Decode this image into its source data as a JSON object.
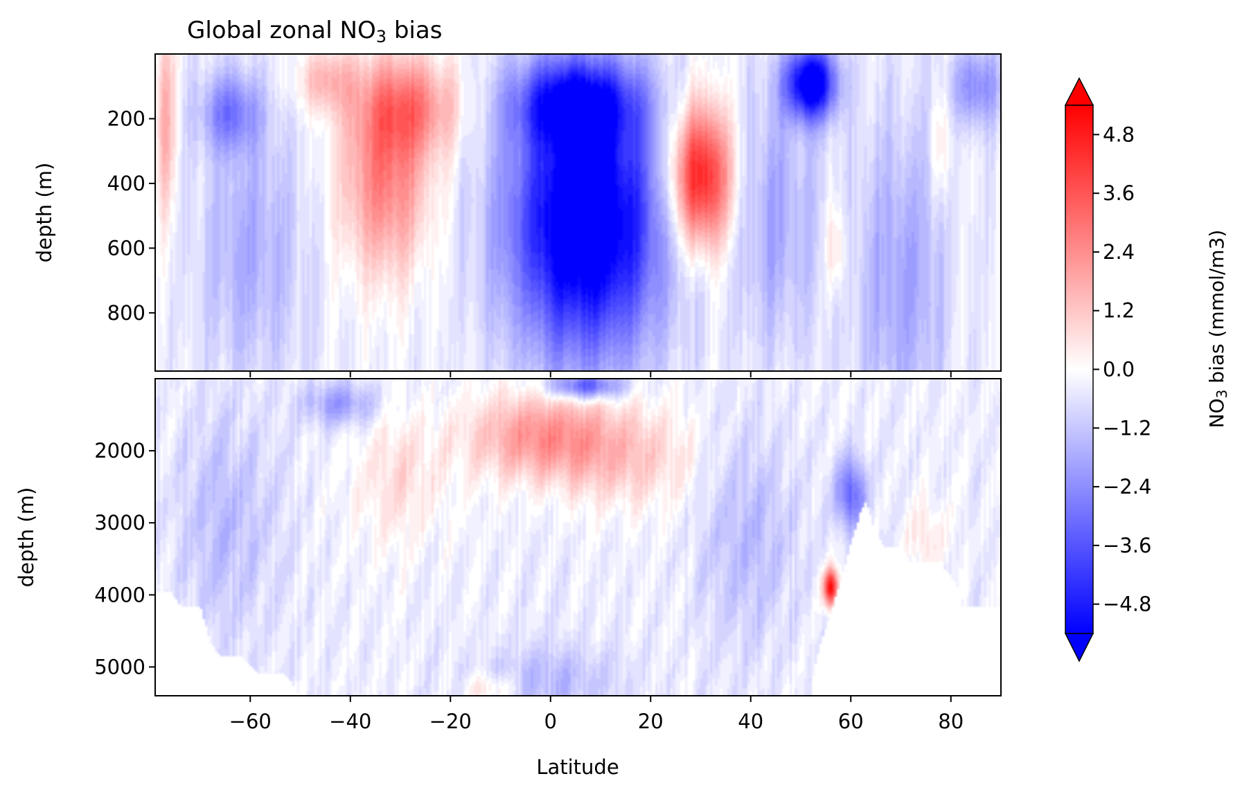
{
  "chart_data": {
    "type": "heatmap",
    "title": {
      "prefix": "Global zonal NO",
      "subscript": "3",
      "suffix": " bias"
    },
    "xlabel": "Latitude",
    "xlim": [
      -79,
      90
    ],
    "xticks": [
      "-60",
      "-40",
      "-20",
      "0",
      "20",
      "40",
      "60",
      "80"
    ],
    "xtick_values": [
      -60,
      -40,
      -20,
      0,
      20,
      40,
      60,
      80
    ],
    "panels": [
      {
        "name": "upper",
        "ylabel": "depth (m)",
        "ylim": [
          0,
          980
        ],
        "y_inverted": true,
        "yticks": [
          "200",
          "400",
          "600",
          "800"
        ],
        "ytick_values": [
          200,
          400,
          600,
          800
        ],
        "anomalies": [
          {
            "lat": 7,
            "depth": 520,
            "value": -6.5,
            "lat_spread": 15,
            "depth_spread": 400
          },
          {
            "lat": 5,
            "depth": 150,
            "value": -4.0,
            "lat_spread": 12,
            "depth_spread": 130
          },
          {
            "lat": 30,
            "depth": 380,
            "value": 5.5,
            "lat_spread": 6,
            "depth_spread": 220
          },
          {
            "lat": -33,
            "depth": 380,
            "value": 3.0,
            "lat_spread": 9,
            "depth_spread": 300
          },
          {
            "lat": -28,
            "depth": 160,
            "value": 2.5,
            "lat_spread": 10,
            "depth_spread": 150
          },
          {
            "lat": -45,
            "depth": 80,
            "value": 1.8,
            "lat_spread": 6,
            "depth_spread": 100
          },
          {
            "lat": -64,
            "depth": 180,
            "value": -2.3,
            "lat_spread": 6,
            "depth_spread": 120
          },
          {
            "lat": -60,
            "depth": 600,
            "value": -1.4,
            "lat_spread": 10,
            "depth_spread": 400
          },
          {
            "lat": 52,
            "depth": 90,
            "value": -6.0,
            "lat_spread": 5,
            "depth_spread": 110
          },
          {
            "lat": 45,
            "depth": 500,
            "value": -1.5,
            "lat_spread": 8,
            "depth_spread": 400
          },
          {
            "lat": 70,
            "depth": 700,
            "value": -1.6,
            "lat_spread": 9,
            "depth_spread": 500
          },
          {
            "lat": 85,
            "depth": 100,
            "value": -2.2,
            "lat_spread": 5,
            "depth_spread": 120
          },
          {
            "lat": 57,
            "depth": 600,
            "value": 1.3,
            "lat_spread": 2,
            "depth_spread": 150
          },
          {
            "lat": -77,
            "depth": 200,
            "value": 2.0,
            "lat_spread": 2,
            "depth_spread": 300
          },
          {
            "lat": 78,
            "depth": 280,
            "value": 1.0,
            "lat_spread": 2,
            "depth_spread": 180
          }
        ]
      },
      {
        "name": "lower",
        "ylabel": "depth (m)",
        "ylim": [
          1000,
          5400
        ],
        "y_inverted": true,
        "yticks": [
          "2000",
          "3000",
          "4000",
          "5000"
        ],
        "ytick_values": [
          2000,
          3000,
          4000,
          5000
        ],
        "anomalies": [
          {
            "lat": -2,
            "depth": 1800,
            "value": 2.6,
            "lat_spread": 14,
            "depth_spread": 600
          },
          {
            "lat": 15,
            "depth": 2100,
            "value": 1.4,
            "lat_spread": 14,
            "depth_spread": 700
          },
          {
            "lat": -30,
            "depth": 2400,
            "value": 1.0,
            "lat_spread": 10,
            "depth_spread": 900
          },
          {
            "lat": 7,
            "depth": 1100,
            "value": -3.5,
            "lat_spread": 7,
            "depth_spread": 180
          },
          {
            "lat": -42,
            "depth": 1350,
            "value": -1.8,
            "lat_spread": 7,
            "depth_spread": 300
          },
          {
            "lat": -65,
            "depth": 3000,
            "value": -1.0,
            "lat_spread": 10,
            "depth_spread": 1500
          },
          {
            "lat": 40,
            "depth": 3200,
            "value": -1.1,
            "lat_spread": 10,
            "depth_spread": 1500
          },
          {
            "lat": 0,
            "depth": 5200,
            "value": -1.1,
            "lat_spread": 14,
            "depth_spread": 500
          },
          {
            "lat": 60,
            "depth": 2600,
            "value": -3.0,
            "lat_spread": 3,
            "depth_spread": 500
          },
          {
            "lat": 56,
            "depth": 3900,
            "value": 5.5,
            "lat_spread": 1.5,
            "depth_spread": 250
          },
          {
            "lat": 75,
            "depth": 3200,
            "value": 0.9,
            "lat_spread": 4,
            "depth_spread": 500
          },
          {
            "lat": -12,
            "depth": 5300,
            "value": 1.2,
            "lat_spread": 5,
            "depth_spread": 200
          }
        ],
        "bottom_mask": [
          [
            -79,
            3950
          ],
          [
            -76,
            3950
          ],
          [
            -74,
            4150
          ],
          [
            -70,
            4150
          ],
          [
            -68,
            4650
          ],
          [
            -66,
            4850
          ],
          [
            -62,
            4850
          ],
          [
            -58,
            5100
          ],
          [
            -53,
            5100
          ],
          [
            -50,
            5400
          ],
          [
            52,
            5400
          ],
          [
            52.5,
            5100
          ],
          [
            54,
            4650
          ],
          [
            56,
            4250
          ],
          [
            58,
            3800
          ],
          [
            60,
            3300
          ],
          [
            62,
            2850
          ],
          [
            63,
            2700
          ],
          [
            65,
            3150
          ],
          [
            67,
            3350
          ],
          [
            70,
            3350
          ],
          [
            72,
            3550
          ],
          [
            78,
            3550
          ],
          [
            81,
            3850
          ],
          [
            82,
            4150
          ],
          [
            90,
            4150
          ]
        ]
      }
    ],
    "colorbar": {
      "label": {
        "prefix": "NO",
        "subscript": "3",
        "suffix": " bias (mmol/m3)"
      },
      "vmin": -5.4,
      "vmax": 5.4,
      "extend": "both",
      "ticks": [
        "4.8",
        "3.6",
        "2.4",
        "1.2",
        "0.0",
        "−1.2",
        "−2.4",
        "−3.6",
        "−4.8"
      ],
      "tick_values": [
        4.8,
        3.6,
        2.4,
        1.2,
        0.0,
        -1.2,
        -2.4,
        -3.6,
        -4.8
      ],
      "cmap": "bwr",
      "neg_color": "#0000ff",
      "mid_color": "#ffffff",
      "pos_color": "#ff0000"
    }
  }
}
